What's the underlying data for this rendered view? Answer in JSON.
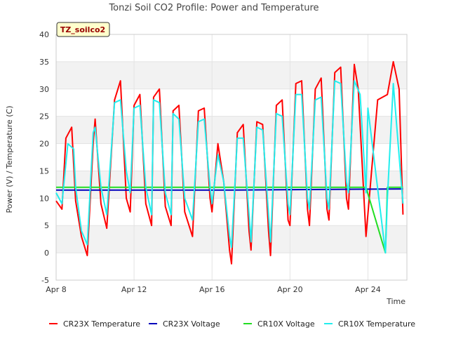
{
  "chart_data": {
    "type": "line",
    "title": "Tonzi Soil CO2 Profile: Power and Temperature",
    "site_label": "TZ_soilco2",
    "xlabel": "Time",
    "ylabel": "Power (V) / Temperature (C)",
    "x_ticks": [
      "Apr 8",
      "Apr 12",
      "Apr 16",
      "Apr 20",
      "Apr 24"
    ],
    "x_tick_days": [
      8,
      12,
      16,
      20,
      24
    ],
    "xlim": [
      8,
      26
    ],
    "ylim": [
      -5,
      40
    ],
    "y_ticks": [
      -5,
      0,
      5,
      10,
      15,
      20,
      25,
      30,
      35,
      40
    ],
    "grid": true,
    "legend_position": "bottom",
    "series": [
      {
        "name": "CR23X Temperature",
        "color": "#ff0000",
        "x": [
          8.0,
          8.3,
          8.5,
          8.8,
          9.0,
          9.3,
          9.6,
          9.9,
          10.0,
          10.3,
          10.6,
          11.0,
          11.3,
          11.6,
          11.8,
          12.0,
          12.3,
          12.6,
          12.9,
          13.0,
          13.3,
          13.6,
          13.9,
          14.0,
          14.3,
          14.6,
          15.0,
          15.3,
          15.6,
          15.9,
          16.0,
          16.3,
          16.6,
          16.9,
          17.0,
          17.3,
          17.6,
          17.9,
          18.0,
          18.3,
          18.6,
          18.9,
          19.0,
          19.3,
          19.6,
          19.9,
          20.0,
          20.3,
          20.6,
          20.9,
          21.0,
          21.3,
          21.6,
          21.9,
          22.0,
          22.3,
          22.6,
          22.9,
          23.0,
          23.3,
          23.5,
          23.9,
          24.5,
          25.0,
          25.3,
          25.6,
          25.8
        ],
        "y": [
          9.5,
          8.0,
          21.0,
          23.0,
          9.5,
          3.0,
          -0.5,
          20.0,
          24.5,
          9.0,
          4.5,
          28.0,
          31.5,
          10.0,
          7.5,
          27.0,
          29.0,
          9.0,
          5.0,
          28.5,
          30.0,
          8.5,
          5.0,
          26.0,
          27.0,
          7.5,
          3.0,
          26.0,
          26.5,
          10.0,
          7.5,
          20.0,
          13.0,
          0.5,
          -2.0,
          22.0,
          23.5,
          4.0,
          0.5,
          24.0,
          23.5,
          4.0,
          -0.5,
          27.0,
          28.0,
          6.0,
          5.0,
          31.0,
          31.5,
          8.0,
          5.0,
          30.0,
          32.0,
          8.0,
          6.0,
          33.0,
          34.0,
          10.0,
          8.0,
          34.5,
          30.0,
          3.0,
          28.0,
          29.0,
          35.0,
          30.0,
          7.0
        ]
      },
      {
        "name": "CR23X Voltage",
        "color": "#0000bb",
        "x": [
          8.0,
          17.0,
          25.8
        ],
        "y": [
          11.5,
          11.5,
          11.7
        ]
      },
      {
        "name": "CR10X Voltage",
        "color": "#22dd22",
        "x": [
          8.0,
          23.9,
          24.9,
          25.0,
          25.8
        ],
        "y": [
          12.0,
          12.0,
          0.0,
          12.0,
          12.0
        ]
      },
      {
        "name": "CR10X Temperature",
        "color": "#22eeee",
        "x": [
          8.0,
          8.3,
          8.6,
          8.9,
          9.0,
          9.3,
          9.6,
          9.9,
          10.0,
          10.3,
          10.6,
          11.0,
          11.3,
          11.6,
          11.8,
          12.0,
          12.3,
          12.6,
          12.9,
          13.0,
          13.3,
          13.6,
          13.9,
          14.0,
          14.3,
          14.6,
          15.0,
          15.3,
          15.6,
          15.9,
          16.0,
          16.3,
          16.6,
          16.9,
          17.0,
          17.3,
          17.6,
          17.9,
          18.0,
          18.3,
          18.6,
          18.9,
          19.0,
          19.3,
          19.6,
          19.9,
          20.0,
          20.3,
          20.6,
          20.9,
          21.0,
          21.3,
          21.6,
          21.9,
          22.0,
          22.3,
          22.6,
          22.9,
          23.0,
          23.3,
          23.6,
          23.9,
          24.0,
          24.9,
          25.0,
          25.3,
          25.8
        ],
        "y": [
          11.0,
          9.0,
          20.0,
          19.0,
          12.0,
          4.0,
          1.5,
          22.0,
          23.0,
          12.0,
          7.0,
          27.5,
          28.0,
          15.0,
          11.0,
          26.5,
          27.0,
          12.0,
          7.0,
          28.0,
          27.5,
          11.0,
          7.0,
          25.5,
          24.5,
          10.0,
          6.0,
          24.0,
          24.5,
          12.0,
          9.0,
          18.0,
          13.0,
          3.0,
          1.0,
          21.0,
          21.0,
          7.0,
          2.0,
          23.0,
          22.5,
          7.0,
          2.0,
          25.5,
          25.0,
          9.0,
          7.0,
          29.0,
          29.0,
          10.0,
          8.0,
          28.0,
          28.5,
          10.0,
          8.0,
          31.5,
          31.0,
          13.0,
          11.0,
          31.5,
          29.0,
          11.0,
          26.5,
          0.0,
          10.0,
          31.0,
          9.0
        ]
      }
    ]
  }
}
